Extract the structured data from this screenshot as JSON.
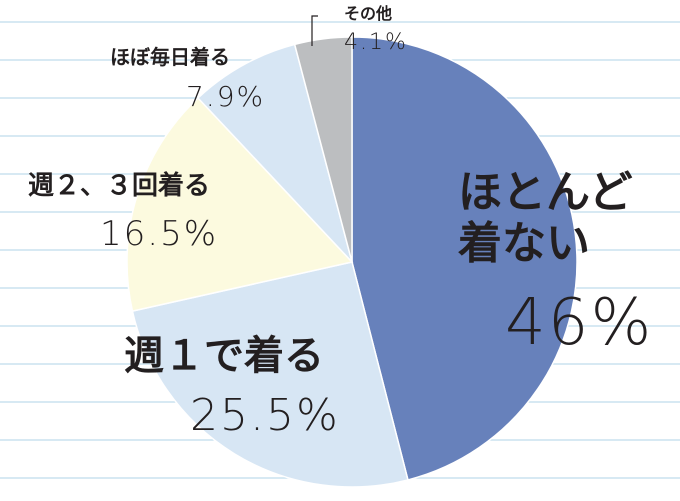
{
  "chart_data": {
    "type": "pie",
    "categories": [
      "ほとんど着ない",
      "週１で着る",
      "週２、３回着る",
      "ほぼ毎日着る",
      "その他"
    ],
    "values": [
      46,
      25.5,
      16.5,
      7.9,
      4.1
    ],
    "value_labels": [
      "46%",
      "25.5%",
      "16.5%",
      "7.9%",
      "4.1%"
    ],
    "colors": [
      "#6781bb",
      "#d7e6f4",
      "#fcfadf",
      "#d7e6f4",
      "#bcbec0"
    ]
  }
}
